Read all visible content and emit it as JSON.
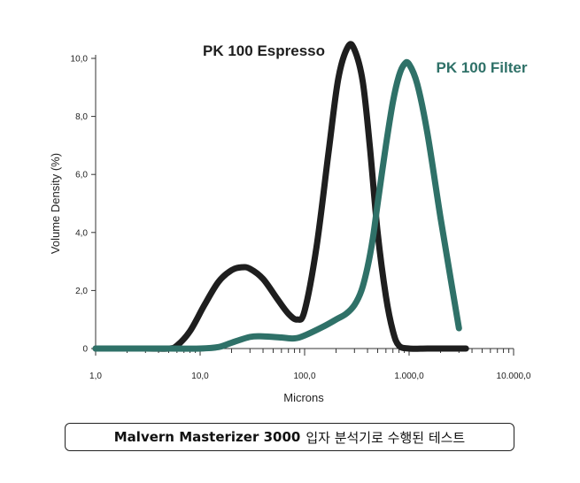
{
  "chart_data": {
    "type": "line",
    "xlabel": "Microns",
    "ylabel": "Volume Density (%)",
    "xscale": "log",
    "xlim": [
      1,
      10000
    ],
    "ylim": [
      0,
      10
    ],
    "x_tick_labels": [
      "1,0",
      "10,0",
      "100,0",
      "1.000,0",
      "10.000,0"
    ],
    "y_tick_labels": [
      "0",
      "2,0",
      "4,0",
      "6,0",
      "8,0",
      "10,0"
    ],
    "series": [
      {
        "name": "PK 100 Espresso",
        "color": "#1e1e1e",
        "x": [
          1,
          3,
          5,
          6,
          8,
          11,
          15,
          20,
          25,
          30,
          40,
          55,
          70,
          85,
          100,
          130,
          170,
          210,
          260,
          300,
          360,
          420,
          500,
          600,
          700,
          800,
          1000,
          1500,
          2500,
          3500
        ],
        "y": [
          0,
          0,
          0,
          0.1,
          0.6,
          1.5,
          2.3,
          2.7,
          2.8,
          2.75,
          2.4,
          1.7,
          1.2,
          1.0,
          1.3,
          3.5,
          6.8,
          9.3,
          10.4,
          10.3,
          9.2,
          7.0,
          4.0,
          1.8,
          0.6,
          0.1,
          0,
          0,
          0,
          0
        ]
      },
      {
        "name": "PK 100 Filter",
        "color": "#2f7168",
        "x": [
          1,
          5,
          10,
          15,
          20,
          30,
          40,
          60,
          80,
          100,
          150,
          200,
          250,
          300,
          350,
          400,
          450,
          500,
          600,
          700,
          800,
          900,
          1000,
          1200,
          1500,
          2000,
          2500,
          3000
        ],
        "y": [
          0,
          0,
          0,
          0.05,
          0.2,
          0.4,
          0.42,
          0.38,
          0.35,
          0.45,
          0.75,
          1.0,
          1.2,
          1.5,
          2.0,
          2.8,
          3.8,
          5.0,
          7.0,
          8.5,
          9.4,
          9.8,
          9.8,
          9.1,
          7.4,
          4.5,
          2.4,
          0.7
        ]
      }
    ]
  },
  "caption": {
    "bold": "Malvern Masterizer 3000",
    "rest": "입자 분석기로 수행된 테스트"
  }
}
